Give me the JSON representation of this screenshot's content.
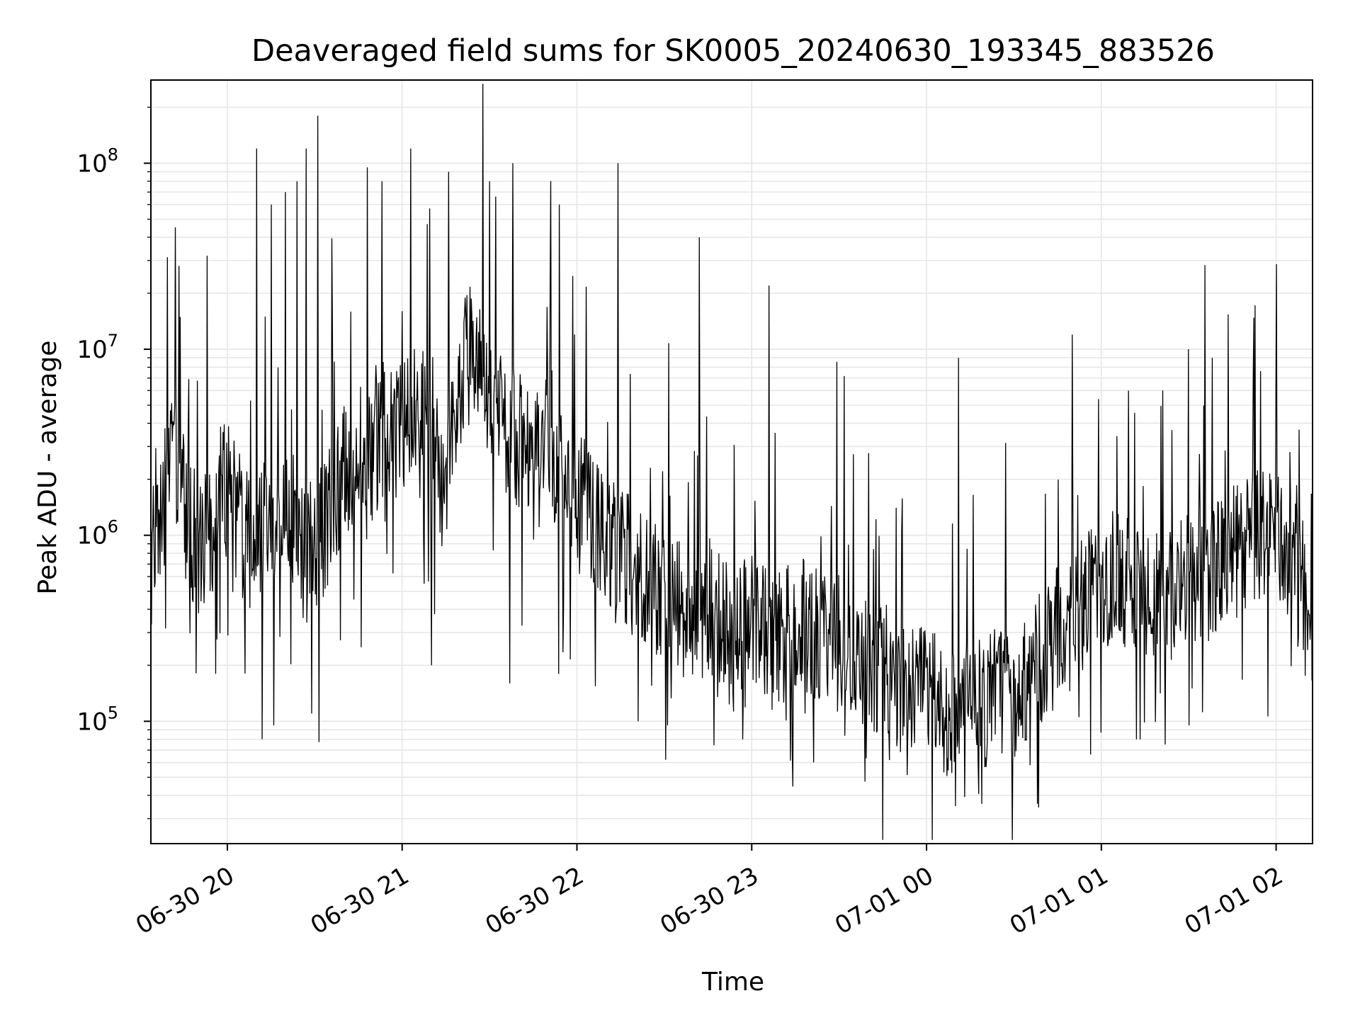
{
  "chart_data": {
    "type": "line",
    "title": "Deaveraged field sums for SK0005_20240630_193345_883526",
    "xlabel": "Time",
    "ylabel": "Peak ADU - average",
    "y_scale": "log",
    "ylim": [
      22000,
      280000000
    ],
    "xlim": [
      "2024-06-30 19:33:45",
      "2024-07-01 02:12:30"
    ],
    "grid": true,
    "line_color": "#000000",
    "background": "#ffffff",
    "x_ticks": [
      {
        "t": "2024-06-30 20:00",
        "label": "06-30 20"
      },
      {
        "t": "2024-06-30 21:00",
        "label": "06-30 21"
      },
      {
        "t": "2024-06-30 22:00",
        "label": "06-30 22"
      },
      {
        "t": "2024-06-30 23:00",
        "label": "06-30 23"
      },
      {
        "t": "2024-07-01 00:00",
        "label": "07-01 00"
      },
      {
        "t": "2024-07-01 01:00",
        "label": "07-01 01"
      },
      {
        "t": "2024-07-01 02:00",
        "label": "07-01 02"
      }
    ],
    "y_ticks": [
      {
        "value": 100000,
        "base": "10",
        "exp": "5"
      },
      {
        "value": 1000000,
        "base": "10",
        "exp": "6"
      },
      {
        "value": 10000000,
        "base": "10",
        "exp": "7"
      },
      {
        "value": 100000000,
        "base": "10",
        "exp": "8"
      }
    ],
    "series": [
      {
        "x": [
          "2024-06-30 19:34",
          "2024-06-30 19:38",
          "2024-06-30 19:42",
          "2024-06-30 19:46",
          "2024-06-30 19:50",
          "2024-06-30 19:54",
          "2024-06-30 19:58",
          "2024-06-30 20:02",
          "2024-06-30 20:06",
          "2024-06-30 20:10",
          "2024-06-30 20:14",
          "2024-06-30 20:18",
          "2024-06-30 20:22",
          "2024-06-30 20:26",
          "2024-06-30 20:30",
          "2024-06-30 20:34",
          "2024-06-30 20:38",
          "2024-06-30 20:42",
          "2024-06-30 20:46",
          "2024-06-30 20:50",
          "2024-06-30 20:54",
          "2024-06-30 20:58",
          "2024-06-30 21:02",
          "2024-06-30 21:06",
          "2024-06-30 21:10",
          "2024-06-30 21:14",
          "2024-06-30 21:18",
          "2024-06-30 21:22",
          "2024-06-30 21:26",
          "2024-06-30 21:30",
          "2024-06-30 21:34",
          "2024-06-30 21:38",
          "2024-06-30 21:42",
          "2024-06-30 21:46",
          "2024-06-30 21:50",
          "2024-06-30 21:54",
          "2024-06-30 21:58",
          "2024-06-30 22:02",
          "2024-06-30 22:06",
          "2024-06-30 22:10",
          "2024-06-30 22:14",
          "2024-06-30 22:18",
          "2024-06-30 22:22",
          "2024-06-30 22:26",
          "2024-06-30 22:30",
          "2024-06-30 22:34",
          "2024-06-30 22:38",
          "2024-06-30 22:42",
          "2024-06-30 22:46",
          "2024-06-30 22:50",
          "2024-06-30 22:54",
          "2024-06-30 22:58",
          "2024-06-30 23:02",
          "2024-06-30 23:06",
          "2024-06-30 23:10",
          "2024-06-30 23:14",
          "2024-06-30 23:18",
          "2024-06-30 23:22",
          "2024-06-30 23:26",
          "2024-06-30 23:30",
          "2024-06-30 23:34",
          "2024-06-30 23:38",
          "2024-06-30 23:42",
          "2024-06-30 23:46",
          "2024-06-30 23:50",
          "2024-06-30 23:54",
          "2024-06-30 23:58",
          "2024-07-01 00:02",
          "2024-07-01 00:06",
          "2024-07-01 00:10",
          "2024-07-01 00:14",
          "2024-07-01 00:18",
          "2024-07-01 00:22",
          "2024-07-01 00:26",
          "2024-07-01 00:30",
          "2024-07-01 00:34",
          "2024-07-01 00:38",
          "2024-07-01 00:42",
          "2024-07-01 00:46",
          "2024-07-01 00:50",
          "2024-07-01 00:54",
          "2024-07-01 00:58",
          "2024-07-01 01:02",
          "2024-07-01 01:06",
          "2024-07-01 01:10",
          "2024-07-01 01:14",
          "2024-07-01 01:18",
          "2024-07-01 01:22",
          "2024-07-01 01:26",
          "2024-07-01 01:30",
          "2024-07-01 01:34",
          "2024-07-01 01:38",
          "2024-07-01 01:42",
          "2024-07-01 01:46",
          "2024-07-01 01:50",
          "2024-07-01 01:54",
          "2024-07-01 01:58",
          "2024-07-01 02:02",
          "2024-07-01 02:06",
          "2024-07-01 02:10",
          "2024-07-01 02:12"
        ],
        "values": [
          700000,
          1500000,
          3000000,
          1200000,
          900000,
          1000000,
          2000000,
          1500000,
          1000000,
          800000,
          1200000,
          1500000,
          1200000,
          1000000,
          900000,
          1100000,
          1800000,
          2500000,
          3000000,
          2800000,
          4000000,
          3500000,
          4000000,
          6000000,
          3000000,
          2000000,
          5000000,
          9000000,
          10000000,
          6000000,
          4000000,
          3500000,
          3000000,
          2500000,
          3000000,
          2000000,
          1800000,
          1500000,
          1200000,
          1000000,
          900000,
          700000,
          600000,
          500000,
          450000,
          420000,
          400000,
          380000,
          400000,
          350000,
          330000,
          320000,
          350000,
          300000,
          280000,
          300000,
          320000,
          300000,
          280000,
          260000,
          250000,
          220000,
          200000,
          180000,
          160000,
          150000,
          140000,
          130000,
          120000,
          110000,
          110000,
          120000,
          130000,
          140000,
          150000,
          170000,
          200000,
          250000,
          300000,
          350000,
          450000,
          500000,
          550000,
          600000,
          550000,
          500000,
          480000,
          450000,
          500000,
          550000,
          600000,
          650000,
          700000,
          800000,
          900000,
          1000000,
          1100000,
          900000,
          700000,
          400000,
          250000
        ]
      },
      {
        "type": "spikes",
        "x": [
          "2024-06-30 20:10",
          "2024-06-30 20:15",
          "2024-06-30 20:20",
          "2024-06-30 20:24",
          "2024-06-30 20:27",
          "2024-06-30 20:31",
          "2024-06-30 20:48",
          "2024-06-30 20:53",
          "2024-06-30 21:03",
          "2024-06-30 21:16",
          "2024-06-30 21:30",
          "2024-06-30 21:38",
          "2024-06-30 21:54",
          "2024-06-30 22:14",
          "2024-06-30 22:42",
          "2024-06-30 23:06",
          "2024-07-01 00:11",
          "2024-07-01 00:50",
          "2024-07-01 01:30",
          "2024-07-01 01:38"
        ],
        "values": [
          120000000,
          60000000,
          70000000,
          80000000,
          120000000,
          180000000,
          95000000,
          80000000,
          120000000,
          90000000,
          80000000,
          100000000,
          60000000,
          100000000,
          40000000,
          22000000,
          9000000,
          12000000,
          10000000,
          9000000
        ]
      },
      {
        "type": "dips",
        "x": [
          "2024-06-30 19:56",
          "2024-06-30 20:12",
          "2024-06-30 20:16",
          "2024-06-30 20:29",
          "2024-06-30 20:46",
          "2024-06-30 21:10",
          "2024-06-30 21:37",
          "2024-06-30 22:21",
          "2024-06-30 22:31",
          "2024-06-30 22:57",
          "2024-06-30 23:14",
          "2024-07-01 00:10",
          "2024-07-01 00:19",
          "2024-07-01 00:38",
          "2024-07-01 01:12",
          "2024-07-01 01:22"
        ],
        "values": [
          180000,
          80000,
          95000,
          110000,
          250000,
          200000,
          160000,
          100000,
          95000,
          80000,
          70000,
          35000,
          36000,
          36000,
          80000,
          75000
        ]
      }
    ]
  }
}
